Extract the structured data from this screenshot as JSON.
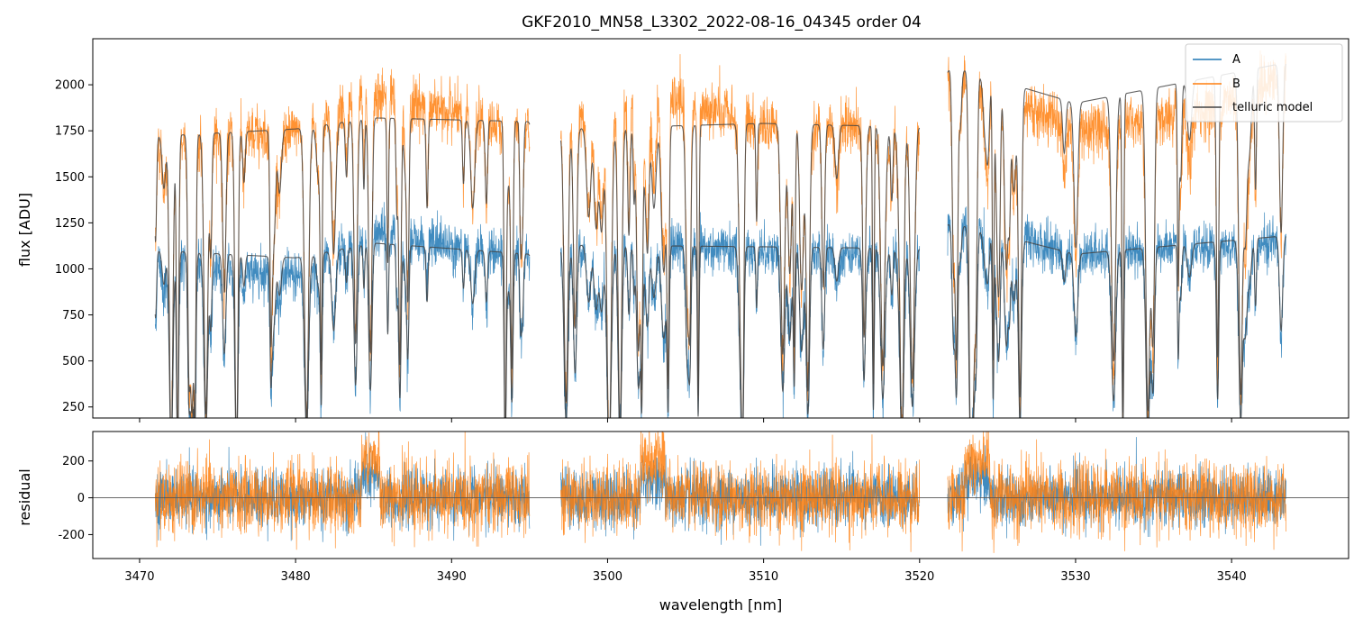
{
  "chart_data": {
    "title": "GKF2010_MN58_L3302_2022-08-16_04345  order 04",
    "xlabel": "wavelength [nm]",
    "xlim": [
      3467,
      3547.5
    ],
    "xticks": [
      3470,
      3480,
      3490,
      3500,
      3510,
      3520,
      3530,
      3540
    ],
    "panels": [
      {
        "type": "line",
        "ylabel": "flux [ADU]",
        "ylim": [
          190,
          2250
        ],
        "yticks": [
          250,
          500,
          750,
          1000,
          1250,
          1500,
          1750,
          2000
        ],
        "segments_nm": [
          [
            3471,
            3495
          ],
          [
            3497,
            3520
          ],
          [
            3521.8,
            3543.5
          ]
        ],
        "series": [
          {
            "name": "A",
            "color": "#1f77b4",
            "continuum": [
              [
                3471,
                1050
              ],
              [
                3480,
                960
              ],
              [
                3485,
                1200
              ],
              [
                3495,
                1050
              ],
              [
                3497,
                1130
              ],
              [
                3510,
                1100
              ],
              [
                3520,
                1080
              ],
              [
                3522,
                1250
              ],
              [
                3530,
                1080
              ],
              [
                3543.5,
                1150
              ]
            ],
            "scatter": 110
          },
          {
            "name": "B",
            "color": "#ff7f0e",
            "continuum": [
              [
                3471,
                1680
              ],
              [
                3480,
                1740
              ],
              [
                3484.8,
                1950
              ],
              [
                3495,
                1750
              ],
              [
                3497,
                1800
              ],
              [
                3503,
                1950
              ],
              [
                3510,
                1780
              ],
              [
                3520,
                1730
              ],
              [
                3522,
                2050
              ],
              [
                3530,
                1750
              ],
              [
                3538,
                1850
              ],
              [
                3543.5,
                2050
              ]
            ],
            "scatter": 120
          },
          {
            "name": "telluric model",
            "color": "#444444",
            "upper": [
              [
                3471,
                1720
              ],
              [
                3480,
                1760
              ],
              [
                3485,
                1820
              ],
              [
                3495,
                1800
              ],
              [
                3497,
                1760
              ],
              [
                3510,
                1790
              ],
              [
                3520,
                1770
              ],
              [
                3522,
                2100
              ],
              [
                3530,
                1900
              ],
              [
                3543.5,
                2120
              ]
            ],
            "lower": [
              [
                3471,
                1100
              ],
              [
                3480,
                1060
              ],
              [
                3485,
                1140
              ],
              [
                3495,
                1080
              ],
              [
                3497,
                1130
              ],
              [
                3510,
                1120
              ],
              [
                3520,
                1110
              ],
              [
                3522,
                1250
              ],
              [
                3530,
                1080
              ],
              [
                3543.5,
                1180
              ]
            ]
          }
        ],
        "legend_location": "upper right"
      },
      {
        "type": "line",
        "ylabel": "residual",
        "ylim": [
          -330,
          360
        ],
        "yticks": [
          -200,
          0,
          200
        ],
        "hline": 0,
        "series": [
          {
            "name": "A",
            "color": "#1f77b4",
            "scatter": 110
          },
          {
            "name": "B",
            "color": "#ff7f0e",
            "scatter": 120
          }
        ]
      }
    ]
  }
}
